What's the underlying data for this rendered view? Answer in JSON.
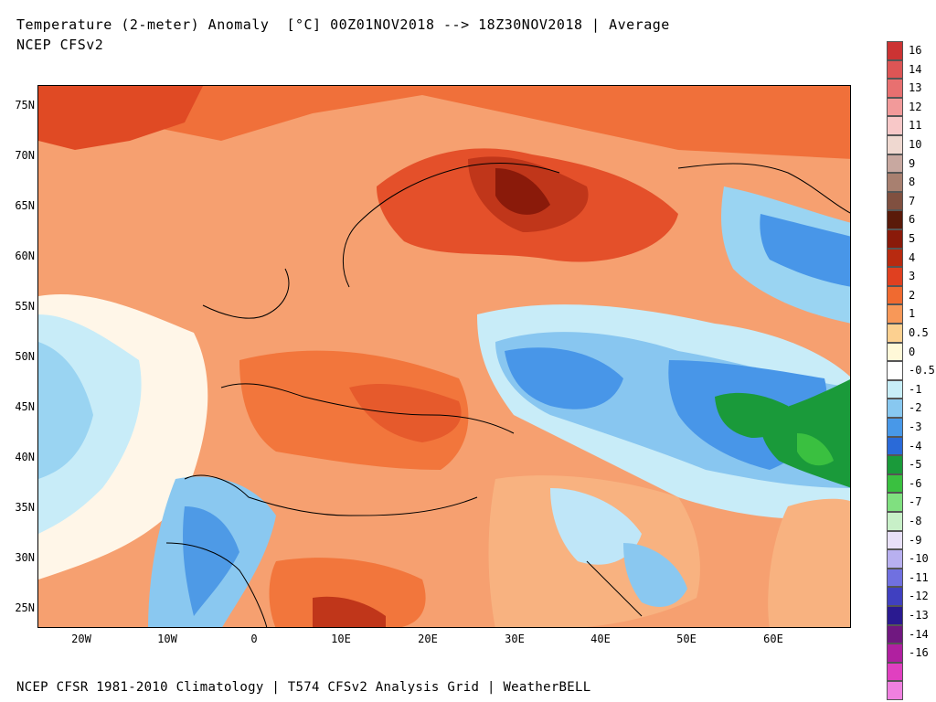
{
  "header": {
    "title_line1": "Temperature (2-meter) Anomaly  [°C] 00Z01NOV2018 --> 18Z30NOV2018 | Average",
    "title_line2": "NCEP CFSv2"
  },
  "footer": {
    "text": "NCEP CFSR 1981-2010 Climatology | T574 CFSv2 Analysis Grid | WeatherBELL"
  },
  "map": {
    "region": "Europe / Middle East",
    "lat_labels": [
      "75N",
      "70N",
      "65N",
      "60N",
      "55N",
      "50N",
      "45N",
      "40N",
      "35N",
      "30N",
      "25N"
    ],
    "lon_labels": [
      "20W",
      "10W",
      "0",
      "10E",
      "20E",
      "30E",
      "40E",
      "50E",
      "60E"
    ],
    "colors": {
      "ocean_warm": "#f8a070",
      "border": "#000000"
    }
  },
  "colorbar": {
    "levels": [
      {
        "label": "16",
        "color": "#cc3333"
      },
      {
        "label": "14",
        "color": "#dd5555"
      },
      {
        "label": "13",
        "color": "#e87070"
      },
      {
        "label": "12",
        "color": "#f29a9a"
      },
      {
        "label": "11",
        "color": "#f8c8c8"
      },
      {
        "label": "10",
        "color": "#efd8d0"
      },
      {
        "label": "9",
        "color": "#c8a8a0"
      },
      {
        "label": "8",
        "color": "#a88070"
      },
      {
        "label": "7",
        "color": "#805040"
      },
      {
        "label": "6",
        "color": "#5a1a0a"
      },
      {
        "label": "5",
        "color": "#8a1a0a"
      },
      {
        "label": "4",
        "color": "#b82a10"
      },
      {
        "label": "3",
        "color": "#e04020"
      },
      {
        "label": "2",
        "color": "#f06a30"
      },
      {
        "label": "1",
        "color": "#f89858"
      },
      {
        "label": "0.5",
        "color": "#fcd090"
      },
      {
        "label": "0",
        "color": "#fff8d8"
      },
      {
        "label": "-0.5",
        "color": "#ffffff"
      },
      {
        "label": "-1",
        "color": "#c8eef8"
      },
      {
        "label": "-2",
        "color": "#88c8f0"
      },
      {
        "label": "-3",
        "color": "#4898e8"
      },
      {
        "label": "-4",
        "color": "#2a6ad8"
      },
      {
        "label": "-5",
        "color": "#1a9a3a"
      },
      {
        "label": "-6",
        "color": "#3ac040"
      },
      {
        "label": "-7",
        "color": "#80e080"
      },
      {
        "label": "-8",
        "color": "#c8f0c8"
      },
      {
        "label": "-9",
        "color": "#e8e0f8"
      },
      {
        "label": "-10",
        "color": "#b8b0f0"
      },
      {
        "label": "-11",
        "color": "#7070e0"
      },
      {
        "label": "-12",
        "color": "#4040c0"
      },
      {
        "label": "-13",
        "color": "#2a1a90"
      },
      {
        "label": "-14",
        "color": "#701880"
      },
      {
        "label": "-16",
        "color": "#b020a0"
      },
      {
        "label": "",
        "color": "#e040c0"
      },
      {
        "label": "",
        "color": "#f080e0"
      }
    ]
  }
}
